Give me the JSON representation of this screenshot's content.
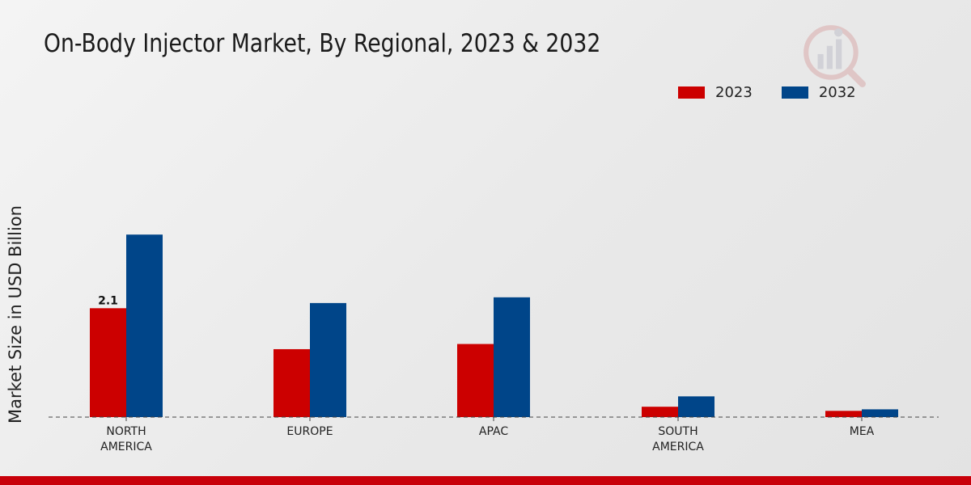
{
  "title": "On-Body Injector Market, By Regional, 2023 & 2032",
  "legend": [
    {
      "label": "2023",
      "color": "#cc0000"
    },
    {
      "label": "2032",
      "color": "#004589"
    }
  ],
  "watermark_icon": "market-research-logo-icon",
  "footer_color": "#c8000a",
  "chart_data": {
    "type": "bar",
    "title": "On-Body Injector Market, By Regional, 2023 & 2032",
    "ylabel": "Market Size in USD Billion",
    "xlabel": "",
    "categories": [
      "NORTH AMERICA",
      "EUROPE",
      "APAC",
      "SOUTH AMERICA",
      "MEA"
    ],
    "category_lines": [
      [
        "NORTH",
        "AMERICA"
      ],
      [
        "EUROPE"
      ],
      [
        "APAC"
      ],
      [
        "SOUTH",
        "AMERICA"
      ],
      [
        "MEA"
      ]
    ],
    "series": [
      {
        "name": "2023",
        "color": "#cc0000",
        "values": [
          2.1,
          1.31,
          1.41,
          0.2,
          0.12
        ]
      },
      {
        "name": "2032",
        "color": "#004589",
        "values": [
          3.52,
          2.2,
          2.31,
          0.4,
          0.15
        ]
      }
    ],
    "data_labels": [
      {
        "series": "2023",
        "category": "NORTH AMERICA",
        "text": "2.1"
      }
    ],
    "ylim": [
      0,
      7
    ],
    "grid": false,
    "legend_position": "top-right"
  }
}
